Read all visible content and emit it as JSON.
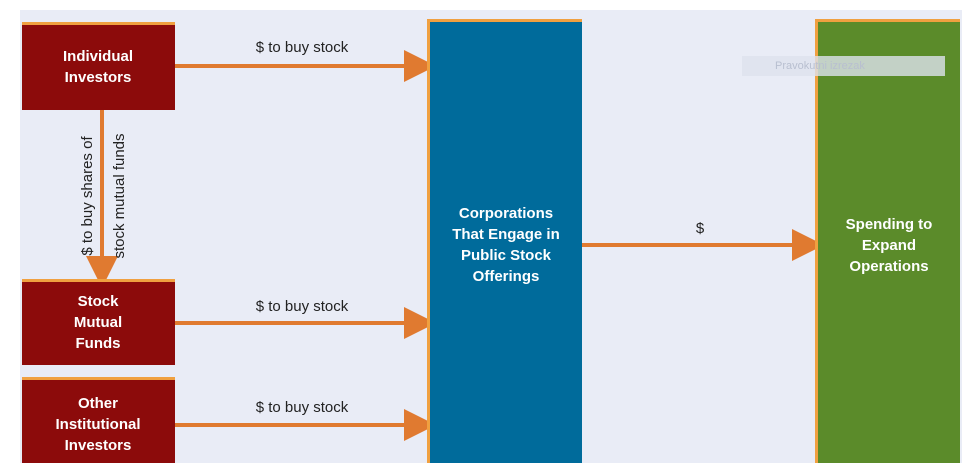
{
  "nodes": [
    {
      "label": [
        "Individual",
        "Investors"
      ]
    },
    {
      "label": [
        "Stock",
        "Mutual",
        "Funds"
      ]
    },
    {
      "label": [
        "Other",
        "Institutional",
        "Investors"
      ]
    },
    {
      "label": [
        "Corporations",
        "That Engage in",
        "Public Stock",
        "Offerings"
      ]
    },
    {
      "label": [
        "Spending to",
        "Expand",
        "Operations"
      ]
    }
  ],
  "edges": [
    {
      "label": "$ to buy stock"
    },
    {
      "label": [
        "$ to buy shares of",
        "stock mutual funds"
      ]
    },
    {
      "label": "$ to buy stock"
    },
    {
      "label": "$ to buy stock"
    },
    {
      "label": "$"
    }
  ],
  "overlay": {
    "label": "Pravokutni izrezak"
  }
}
